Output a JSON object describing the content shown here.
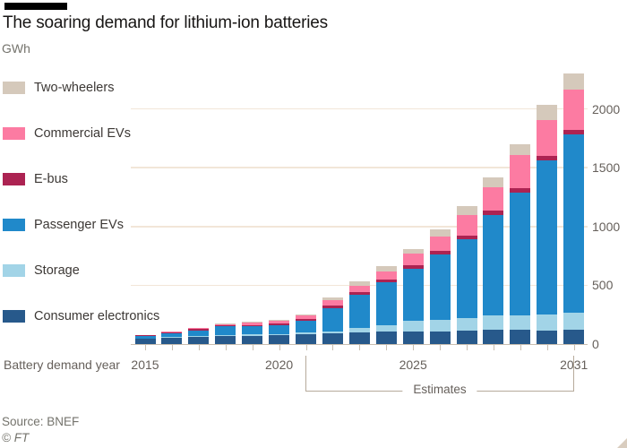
{
  "header": {
    "title": "The soaring demand for lithium-ion batteries",
    "unit_label": "GWh"
  },
  "legend": [
    {
      "label": "Two-wheelers",
      "color": "#d5c9bb"
    },
    {
      "label": "Commercial EVs",
      "color": "#fc7ba2"
    },
    {
      "label": "E-bus",
      "color": "#ac2352"
    },
    {
      "label": "Passenger EVs",
      "color": "#2089ca"
    },
    {
      "label": "Storage",
      "color": "#a2d4e7"
    },
    {
      "label": "Consumer electronics",
      "color": "#27598b"
    }
  ],
  "chart_data": {
    "type": "bar",
    "stacked": true,
    "title": "The soaring demand for lithium-ion batteries",
    "ylabel": "GWh",
    "xlabel": "Battery demand year",
    "grid": true,
    "legend_position": "left",
    "ylim": [
      0,
      2400
    ],
    "yticks": [
      0,
      500,
      1000,
      1500,
      2000
    ],
    "x": [
      2015,
      2016,
      2017,
      2018,
      2019,
      2020,
      2021,
      2022,
      2023,
      2024,
      2025,
      2026,
      2027,
      2028,
      2029,
      2030,
      2031
    ],
    "xticks_labeled": [
      2015,
      2020,
      2025,
      2031
    ],
    "series": [
      {
        "name": "Consumer electronics",
        "color": "#27598b",
        "values": [
          45,
          55,
          62,
          70,
          72,
          76,
          84,
          88,
          97,
          105,
          108,
          110,
          114,
          120,
          118,
          114,
          122
        ]
      },
      {
        "name": "Storage",
        "color": "#a2d4e7",
        "values": [
          2,
          3,
          4,
          5,
          8,
          10,
          15,
          20,
          38,
          56,
          90,
          95,
          107,
          120,
          128,
          137,
          145
        ]
      },
      {
        "name": "Passenger EVs",
        "color": "#2089ca",
        "values": [
          20,
          30,
          52,
          74,
          70,
          75,
          100,
          200,
          285,
          364,
          440,
          554,
          670,
          860,
          1040,
          1310,
          1520
        ]
      },
      {
        "name": "E-bus",
        "color": "#ac2352",
        "values": [
          6,
          10,
          12,
          14,
          13,
          15,
          13,
          20,
          20,
          25,
          33,
          30,
          30,
          38,
          38,
          38,
          38
        ]
      },
      {
        "name": "Commercial EVs",
        "color": "#fc7ba2",
        "values": [
          4,
          8,
          8,
          8,
          20,
          23,
          35,
          43,
          56,
          69,
          100,
          127,
          173,
          198,
          285,
          305,
          343
        ]
      },
      {
        "name": "Two-wheelers",
        "color": "#d5c9bb",
        "values": [
          2,
          3,
          3,
          3,
          5,
          5,
          8,
          25,
          38,
          45,
          40,
          58,
          82,
          81,
          89,
          134,
          135
        ]
      }
    ],
    "annotations": {
      "estimates_label": "Estimates",
      "estimates_range": [
        2021,
        2031
      ]
    }
  },
  "axis": {
    "x_title": "Battery demand year"
  },
  "footer": {
    "source": "Source: BNEF",
    "copyright": "© FT"
  }
}
